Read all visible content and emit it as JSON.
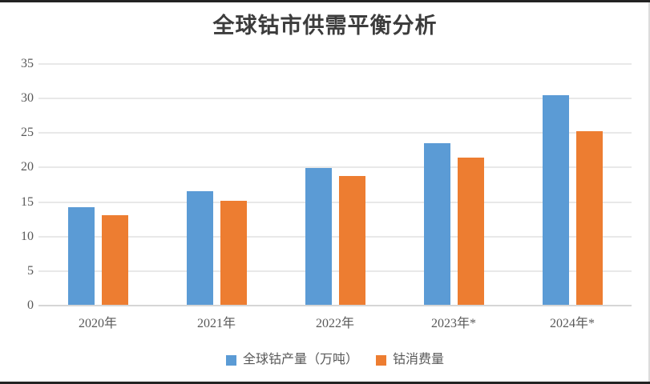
{
  "title": "全球钴市供需平衡分析",
  "colors": {
    "production_blue": "#5B9BD5",
    "consumption_orange": "#ED7D31",
    "gridline": "#E8E8E8",
    "axis_line": "#D6D6D6",
    "tick_text": "#595959",
    "title_text": "#3C3C3C",
    "page_rule": "#232323"
  },
  "chart_data": {
    "type": "bar",
    "title": "全球钴市供需平衡分析",
    "categories": [
      "2020年",
      "2021年",
      "2022年",
      "2023年*",
      "2024年*"
    ],
    "series": [
      {
        "name": "全球钴产量（万吨）",
        "color": "#5B9BD5",
        "values": [
          14.1,
          16.5,
          19.8,
          23.4,
          30.4
        ]
      },
      {
        "name": "钴消费量",
        "color": "#ED7D31",
        "values": [
          13.0,
          15.1,
          18.7,
          21.3,
          25.1
        ]
      }
    ],
    "xlabel": "",
    "ylabel": "",
    "ylim": [
      0,
      35
    ],
    "yticks": [
      0,
      5,
      10,
      15,
      20,
      25,
      30,
      35
    ],
    "grid": true,
    "legend_position": "bottom"
  }
}
